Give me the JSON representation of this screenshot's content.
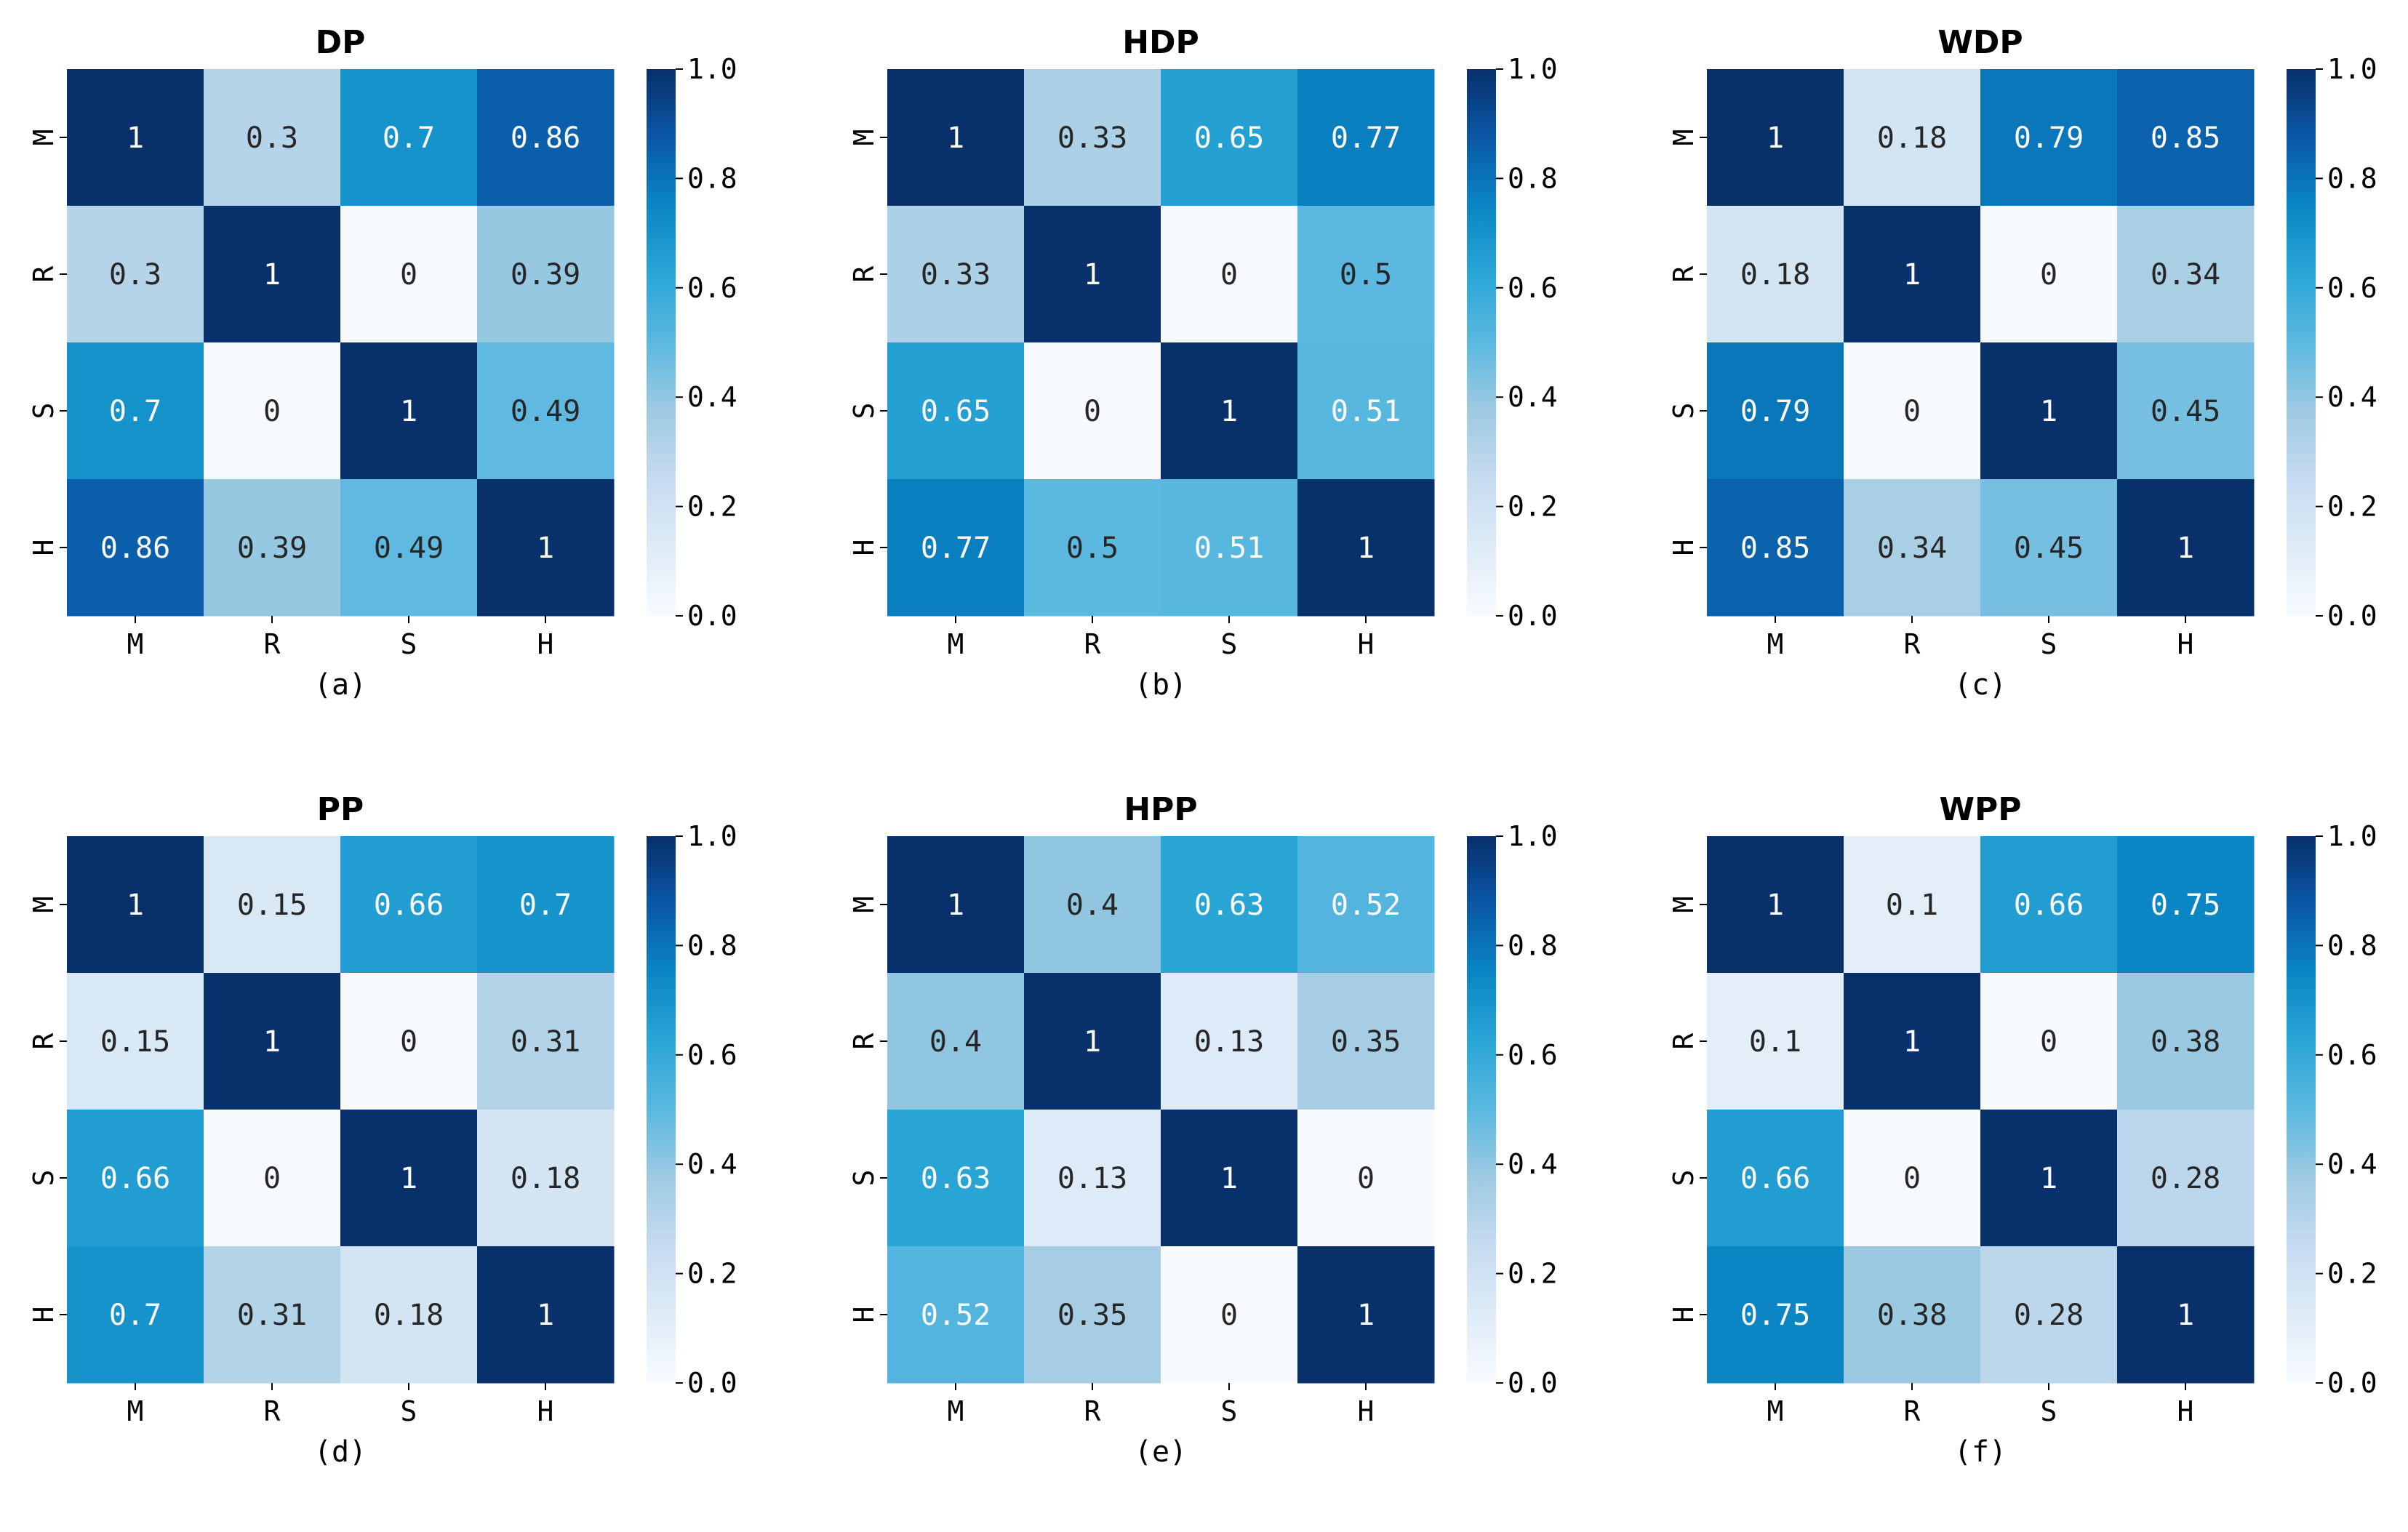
{
  "chart_data": [
    {
      "type": "heatmap",
      "title": "DP",
      "subtitle": "(a)",
      "x_labels": [
        "M",
        "R",
        "S",
        "H"
      ],
      "y_labels": [
        "M",
        "R",
        "S",
        "H"
      ],
      "values": [
        [
          1,
          0.3,
          0.7,
          0.86
        ],
        [
          0.3,
          1,
          0,
          0.39
        ],
        [
          0.7,
          0,
          1,
          0.49
        ],
        [
          0.86,
          0.39,
          0.49,
          1
        ]
      ],
      "cell_labels": [
        [
          "1",
          "0.3",
          "0.7",
          "0.86"
        ],
        [
          "0.3",
          "1",
          "0",
          "0.39"
        ],
        [
          "0.7",
          "0",
          "1",
          "0.49"
        ],
        [
          "0.86",
          "0.39",
          "0.49",
          "1"
        ]
      ],
      "colorbar": {
        "ticks": [
          "0.0",
          "0.2",
          "0.4",
          "0.6",
          "0.8",
          "1.0"
        ],
        "range": [
          0,
          1
        ],
        "colormap": "Blues"
      }
    },
    {
      "type": "heatmap",
      "title": "HDP",
      "subtitle": "(b)",
      "x_labels": [
        "M",
        "R",
        "S",
        "H"
      ],
      "y_labels": [
        "M",
        "R",
        "S",
        "H"
      ],
      "values": [
        [
          1,
          0.33,
          0.65,
          0.77
        ],
        [
          0.33,
          1,
          0,
          0.5
        ],
        [
          0.65,
          0,
          1,
          0.51
        ],
        [
          0.77,
          0.5,
          0.51,
          1
        ]
      ],
      "cell_labels": [
        [
          "1",
          "0.33",
          "0.65",
          "0.77"
        ],
        [
          "0.33",
          "1",
          "0",
          "0.5"
        ],
        [
          "0.65",
          "0",
          "1",
          "0.51"
        ],
        [
          "0.77",
          "0.5",
          "0.51",
          "1"
        ]
      ],
      "colorbar": {
        "ticks": [
          "0.0",
          "0.2",
          "0.4",
          "0.6",
          "0.8",
          "1.0"
        ],
        "range": [
          0,
          1
        ],
        "colormap": "Blues"
      }
    },
    {
      "type": "heatmap",
      "title": "WDP",
      "subtitle": "(c)",
      "x_labels": [
        "M",
        "R",
        "S",
        "H"
      ],
      "y_labels": [
        "M",
        "R",
        "S",
        "H"
      ],
      "values": [
        [
          1,
          0.18,
          0.79,
          0.85
        ],
        [
          0.18,
          1,
          0,
          0.34
        ],
        [
          0.79,
          0,
          1,
          0.45
        ],
        [
          0.85,
          0.34,
          0.45,
          1
        ]
      ],
      "cell_labels": [
        [
          "1",
          "0.18",
          "0.79",
          "0.85"
        ],
        [
          "0.18",
          "1",
          "0",
          "0.34"
        ],
        [
          "0.79",
          "0",
          "1",
          "0.45"
        ],
        [
          "0.85",
          "0.34",
          "0.45",
          "1"
        ]
      ],
      "colorbar": {
        "ticks": [
          "0.0",
          "0.2",
          "0.4",
          "0.6",
          "0.8",
          "1.0"
        ],
        "range": [
          0,
          1
        ],
        "colormap": "Blues"
      }
    },
    {
      "type": "heatmap",
      "title": "PP",
      "subtitle": "(d)",
      "x_labels": [
        "M",
        "R",
        "S",
        "H"
      ],
      "y_labels": [
        "M",
        "R",
        "S",
        "H"
      ],
      "values": [
        [
          1,
          0.15,
          0.66,
          0.7
        ],
        [
          0.15,
          1,
          0,
          0.31
        ],
        [
          0.66,
          0,
          1,
          0.18
        ],
        [
          0.7,
          0.31,
          0.18,
          1
        ]
      ],
      "cell_labels": [
        [
          "1",
          "0.15",
          "0.66",
          "0.7"
        ],
        [
          "0.15",
          "1",
          "0",
          "0.31"
        ],
        [
          "0.66",
          "0",
          "1",
          "0.18"
        ],
        [
          "0.7",
          "0.31",
          "0.18",
          "1"
        ]
      ],
      "colorbar": {
        "ticks": [
          "0.0",
          "0.2",
          "0.4",
          "0.6",
          "0.8",
          "1.0"
        ],
        "range": [
          0,
          1
        ],
        "colormap": "Blues"
      }
    },
    {
      "type": "heatmap",
      "title": "HPP",
      "subtitle": "(e)",
      "x_labels": [
        "M",
        "R",
        "S",
        "H"
      ],
      "y_labels": [
        "M",
        "R",
        "S",
        "H"
      ],
      "values": [
        [
          1,
          0.4,
          0.63,
          0.52
        ],
        [
          0.4,
          1,
          0.13,
          0.35
        ],
        [
          0.63,
          0.13,
          1,
          0
        ],
        [
          0.52,
          0.35,
          0,
          1
        ]
      ],
      "cell_labels": [
        [
          "1",
          "0.4",
          "0.63",
          "0.52"
        ],
        [
          "0.4",
          "1",
          "0.13",
          "0.35"
        ],
        [
          "0.63",
          "0.13",
          "1",
          "0"
        ],
        [
          "0.52",
          "0.35",
          "0",
          "1"
        ]
      ],
      "colorbar": {
        "ticks": [
          "0.0",
          "0.2",
          "0.4",
          "0.6",
          "0.8",
          "1.0"
        ],
        "range": [
          0,
          1
        ],
        "colormap": "Blues"
      }
    },
    {
      "type": "heatmap",
      "title": "WPP",
      "subtitle": "(f)",
      "x_labels": [
        "M",
        "R",
        "S",
        "H"
      ],
      "y_labels": [
        "M",
        "R",
        "S",
        "H"
      ],
      "values": [
        [
          1,
          0.1,
          0.66,
          0.75
        ],
        [
          0.1,
          1,
          0,
          0.38
        ],
        [
          0.66,
          0,
          1,
          0.28
        ],
        [
          0.75,
          0.38,
          0.28,
          1
        ]
      ],
      "cell_labels": [
        [
          "1",
          "0.1",
          "0.66",
          "0.75"
        ],
        [
          "0.1",
          "1",
          "0",
          "0.38"
        ],
        [
          "0.66",
          "0",
          "1",
          "0.28"
        ],
        [
          "0.75",
          "0.38",
          "0.28",
          "1"
        ]
      ],
      "colorbar": {
        "ticks": [
          "0.0",
          "0.2",
          "0.4",
          "0.6",
          "0.8",
          "1.0"
        ],
        "range": [
          0,
          1
        ],
        "colormap": "Blues"
      }
    }
  ]
}
